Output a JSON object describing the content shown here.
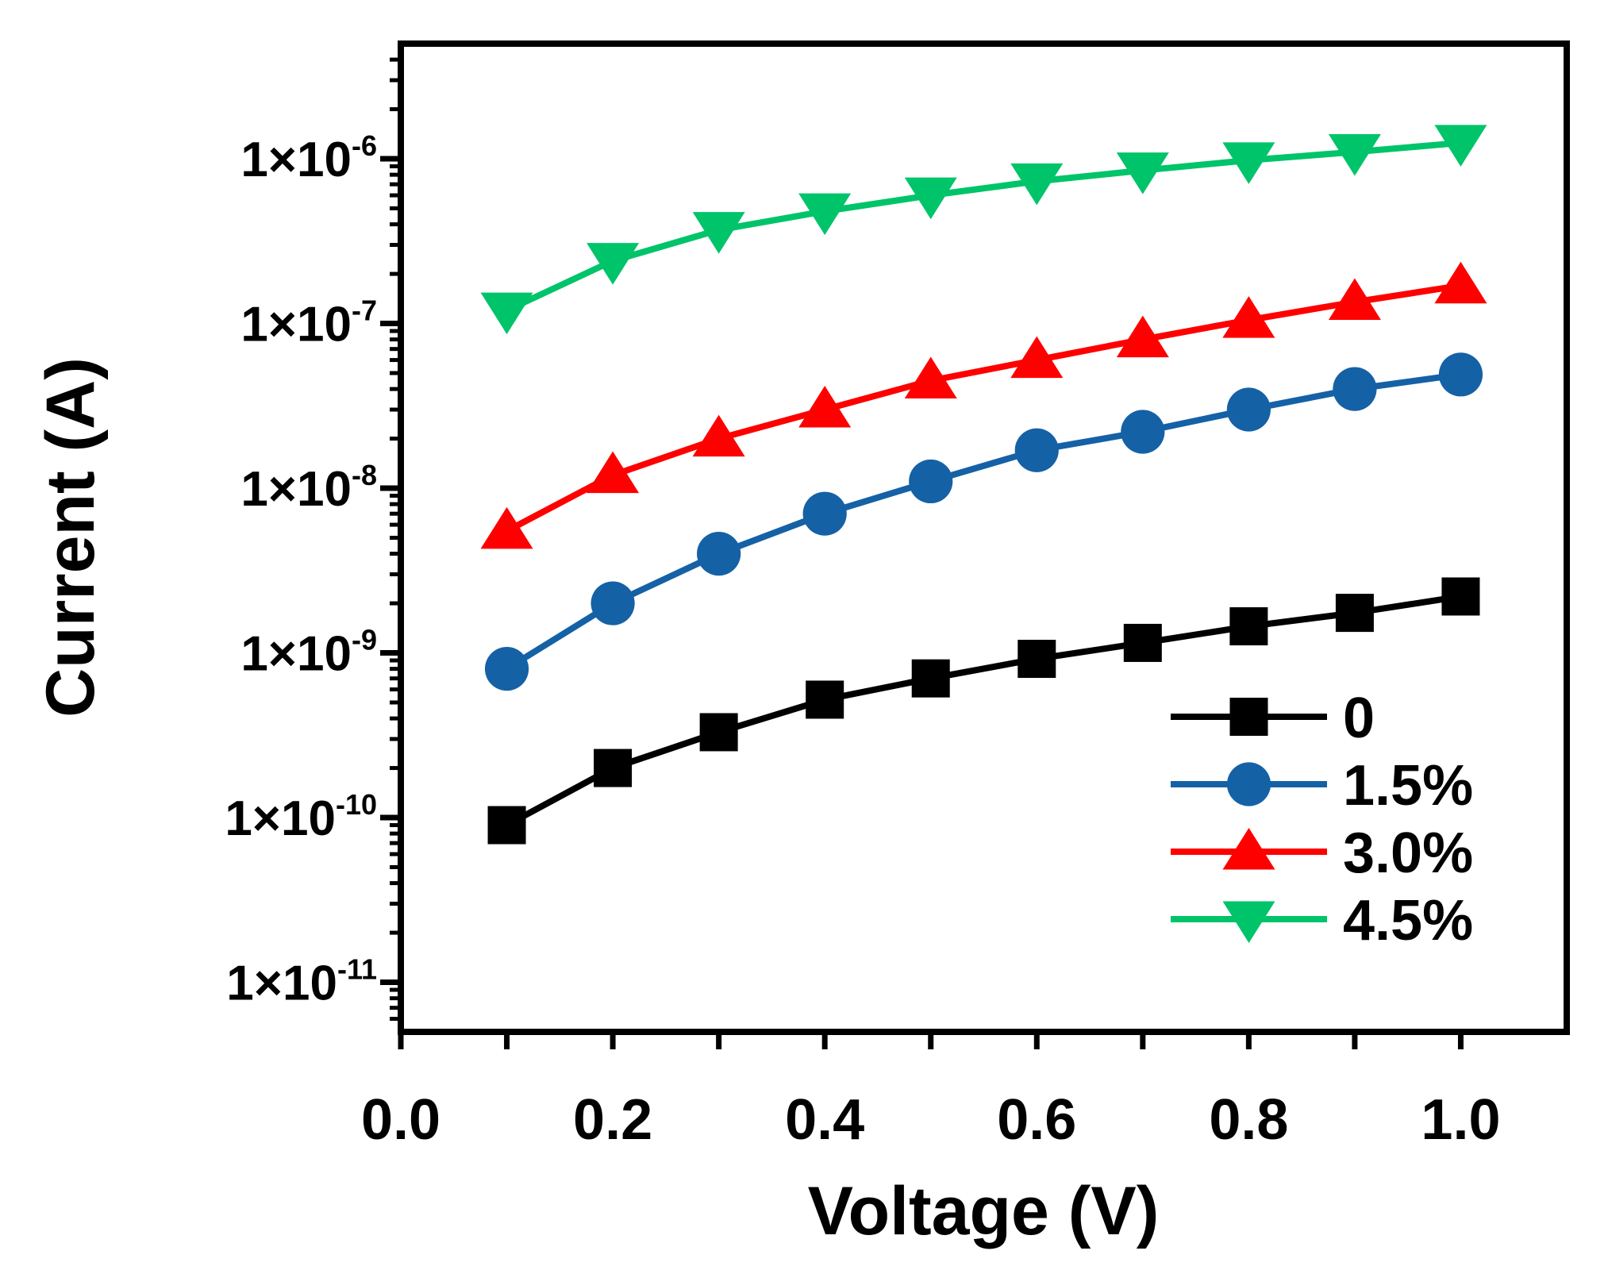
{
  "chart_data": {
    "type": "line",
    "title": "",
    "xlabel": "Voltage (V)",
    "ylabel": "Current (A)",
    "yscale": "log",
    "xlim": [
      0.0,
      1.1
    ],
    "ylim": [
      5e-12,
      5e-06
    ],
    "xticks": [
      0.0,
      0.2,
      0.4,
      0.6,
      0.8,
      1.0
    ],
    "xtick_labels": [
      "0.0",
      "0.2",
      "0.4",
      "0.6",
      "0.8",
      "1.0"
    ],
    "yticks": [
      1e-11,
      1e-10,
      1e-09,
      1e-08,
      1e-07,
      1e-06
    ],
    "ytick_labels": [
      {
        "base": "1×10",
        "exp": "-11"
      },
      {
        "base": "1×10",
        "exp": "-10"
      },
      {
        "base": "1×10",
        "exp": "-9"
      },
      {
        "base": "1×10",
        "exp": "-8"
      },
      {
        "base": "1×10",
        "exp": "-7"
      },
      {
        "base": "1×10",
        "exp": "-6"
      }
    ],
    "grid": false,
    "legend_position": "bottom-right",
    "x": [
      0.1,
      0.2,
      0.3,
      0.4,
      0.5,
      0.6,
      0.7,
      0.8,
      0.9,
      1.0
    ],
    "series": [
      {
        "name": "0",
        "color": "#000000",
        "marker": "square",
        "values": [
          9e-11,
          2e-10,
          3.3e-10,
          5.2e-10,
          7e-10,
          9.2e-10,
          1.15e-09,
          1.45e-09,
          1.75e-09,
          2.2e-09
        ]
      },
      {
        "name": "1.5%",
        "color": "#1561a6",
        "marker": "circle",
        "values": [
          8e-10,
          2e-09,
          4e-09,
          7e-09,
          1.1e-08,
          1.7e-08,
          2.2e-08,
          3e-08,
          4e-08,
          4.9e-08
        ]
      },
      {
        "name": "3.0%",
        "color": "#ff0000",
        "marker": "triangle-up",
        "values": [
          5.5e-09,
          1.2e-08,
          2e-08,
          3e-08,
          4.5e-08,
          6e-08,
          8e-08,
          1.05e-07,
          1.35e-07,
          1.7e-07
        ]
      },
      {
        "name": "4.5%",
        "color": "#00c46a",
        "marker": "triangle-down",
        "values": [
          1.2e-07,
          2.4e-07,
          3.7e-07,
          4.8e-07,
          6e-07,
          7.3e-07,
          8.5e-07,
          9.8e-07,
          1.1e-06,
          1.25e-06
        ]
      }
    ]
  }
}
